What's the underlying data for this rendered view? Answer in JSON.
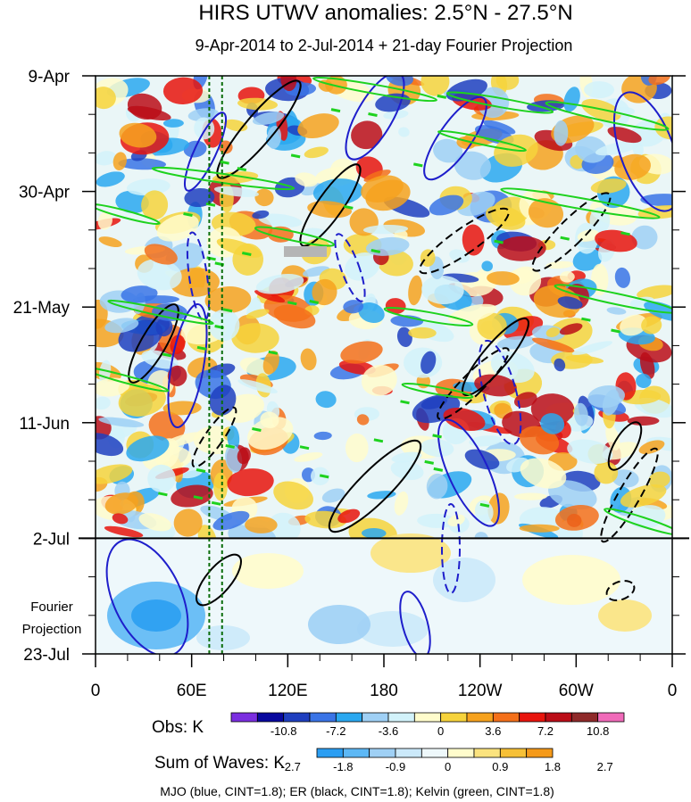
{
  "chart_data": {
    "type": "heatmap",
    "title": "HIRS UTWV anomalies: 2.5°N - 27.5°N",
    "subtitle": "9-Apr-2014 to 2-Jul-2014 + 21-day Fourier Projection",
    "x_ticks": [
      "0",
      "60E",
      "120E",
      "180",
      "120W",
      "60W",
      "0"
    ],
    "x_tick_lons": [
      0,
      60,
      120,
      180,
      240,
      300,
      360
    ],
    "xlim": [
      0,
      360
    ],
    "y_ticks": [
      "9-Apr",
      "30-Apr",
      "21-May",
      "11-Jun",
      "2-Jul",
      "23-Jul"
    ],
    "y_tick_days": [
      0,
      21,
      42,
      63,
      84,
      105
    ],
    "ylim_days": [
      0,
      105
    ],
    "projection_label_lines": [
      "Fourier",
      "Projection"
    ],
    "projection_start_day": 84,
    "obs_legend": {
      "label": "Obs: K",
      "tick_labels": [
        "-10.8",
        "-7.2",
        "-3.6",
        "0",
        "3.6",
        "7.2",
        "10.8"
      ],
      "colors": [
        "#7b2ee0",
        "#08089e",
        "#1f3fbf",
        "#3a74e6",
        "#2aa8f0",
        "#9fd0f5",
        "#d2f2fa",
        "#fffccc",
        "#f6d33c",
        "#f6a21e",
        "#f4701a",
        "#e8140d",
        "#bb0d17",
        "#8f2a2a",
        "#f06ab9"
      ]
    },
    "waves_legend": {
      "label": "Sum of Waves: K",
      "tick_labels": [
        "-2.7",
        "-1.8",
        "-0.9",
        "0",
        "0.9",
        "1.8",
        "2.7"
      ],
      "colors": [
        "#2b9ef2",
        "#5db8f5",
        "#9fd0f5",
        "#cbe9fa",
        "#eef8fb",
        "#fffccc",
        "#fbe37e",
        "#f6c037",
        "#f59a1a"
      ]
    },
    "wave_contours": [
      {
        "name": "MJO",
        "color": "#1e1ecb"
      },
      {
        "name": "ER",
        "color": "#000000"
      },
      {
        "name": "Kelvin",
        "color": "#1ed21e"
      }
    ],
    "reference_lines_lon": [
      71,
      79
    ],
    "footer": "MJO (blue, CINT=1.8); ER (black, CINT=1.8); Kelvin (green, CINT=1.8)"
  }
}
